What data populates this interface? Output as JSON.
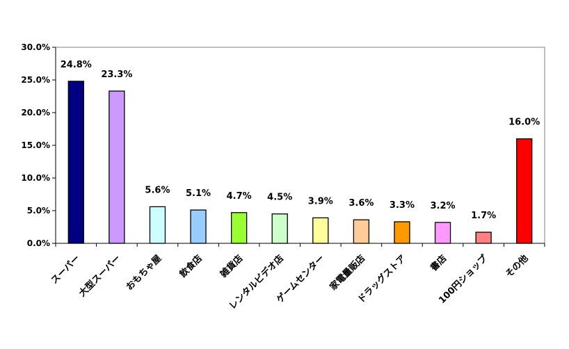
{
  "chart_data": {
    "type": "bar",
    "categories": [
      "スーパー",
      "大型スーパー",
      "おもちゃ屋",
      "飲食店",
      "雑貨店",
      "レンタルビデオ店",
      "ゲームセンター",
      "家電量販店",
      "ドラッグストア",
      "書店",
      "100円ショップ",
      "その他"
    ],
    "values": [
      24.8,
      23.3,
      5.6,
      5.1,
      4.7,
      4.5,
      3.9,
      3.6,
      3.3,
      3.2,
      1.7,
      16.0
    ],
    "value_labels": [
      "24.8%",
      "23.3%",
      "5.6%",
      "5.1%",
      "4.7%",
      "4.5%",
      "3.9%",
      "3.6%",
      "3.3%",
      "3.2%",
      "1.7%",
      "16.0%"
    ],
    "colors": [
      "#000080",
      "#cc99ff",
      "#ccffff",
      "#99ccff",
      "#99ff33",
      "#ccffcc",
      "#ffff99",
      "#ffcc99",
      "#ff9900",
      "#ff99ff",
      "#ff8080",
      "#ff0000"
    ],
    "yticks": [
      0,
      5,
      10,
      15,
      20,
      25,
      30
    ],
    "ytick_labels": [
      "0.0%",
      "5.0%",
      "10.0%",
      "15.0%",
      "20.0%",
      "25.0%",
      "30.0%"
    ],
    "ylim": [
      0,
      30
    ],
    "title": "",
    "xlabel": "",
    "ylabel": "",
    "grid": false,
    "legend": "none"
  }
}
